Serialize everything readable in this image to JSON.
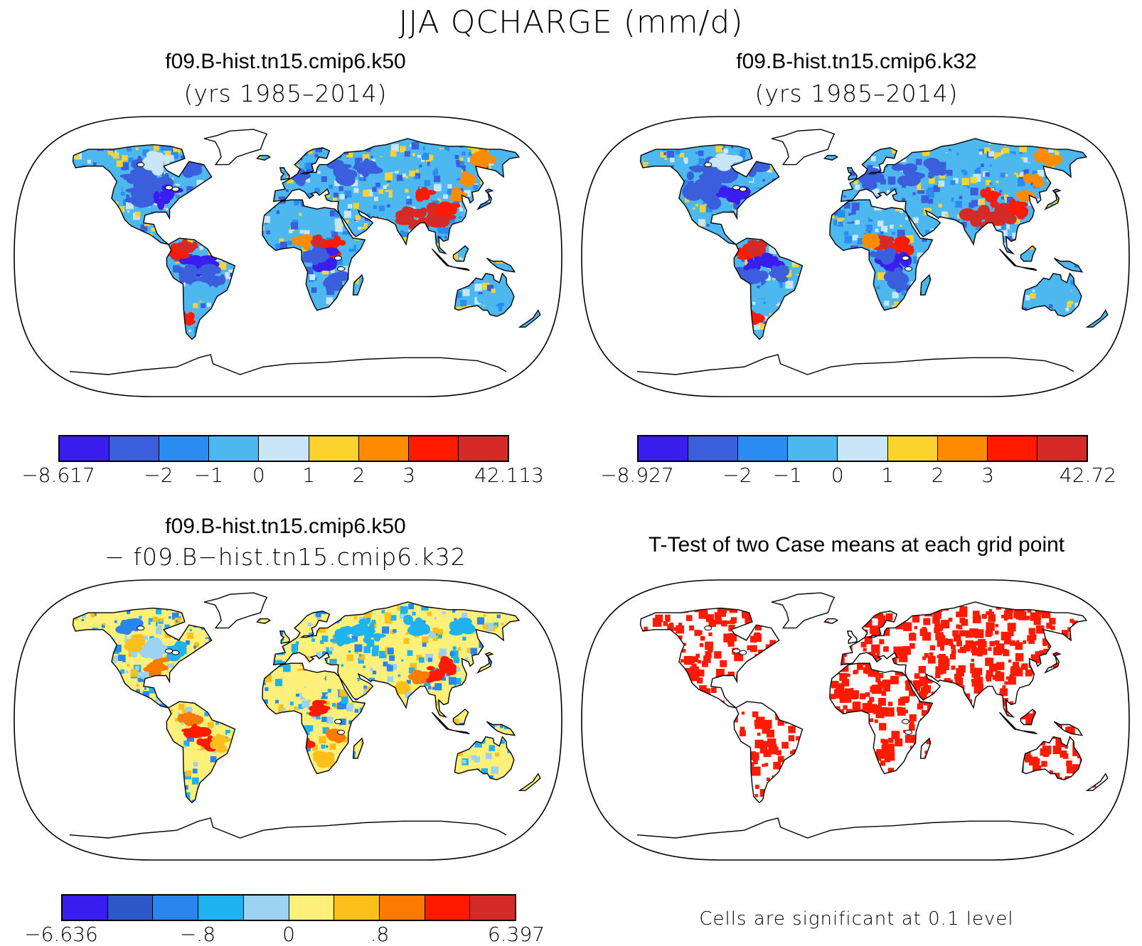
{
  "title": "JJA QCHARGE (mm/d)",
  "panels": [
    {
      "title": "f09.B-hist.tn15.cmip6.k50",
      "subtitle": "(yrs 1985–2014)",
      "colorbar": {
        "colors": [
          "#3a1ef0",
          "#3b5fdc",
          "#2a8cf0",
          "#4db8f0",
          "#c8e6f7",
          "#fcd22c",
          "#ff8c00",
          "#ff1a00",
          "#d42a28"
        ],
        "ticks": [
          "−8.617",
          "−2",
          "−1",
          "0",
          "1",
          "2",
          "3",
          "42.113"
        ]
      }
    },
    {
      "title": "f09.B-hist.tn15.cmip6.k32",
      "subtitle": "(yrs 1985–2014)",
      "colorbar": {
        "colors": [
          "#3a1ef0",
          "#3b5fdc",
          "#2a8cf0",
          "#4db8f0",
          "#c8e6f7",
          "#fcd22c",
          "#ff8c00",
          "#ff1a00",
          "#d42a28"
        ],
        "ticks": [
          "−8.927",
          "−2",
          "−1",
          "0",
          "1",
          "2",
          "3",
          "42.72"
        ]
      }
    },
    {
      "title": "f09.B-hist.tn15.cmip6.k50",
      "subtitle": "− f09.B−hist.tn15.cmip6.k32",
      "colorbar": {
        "colors": [
          "#3a1ef0",
          "#2e57c8",
          "#2a86ee",
          "#1fb2ee",
          "#9dd3f0",
          "#fff07a",
          "#fcbf1c",
          "#ff7a00",
          "#ff1a00",
          "#d42a28"
        ],
        "ticks": [
          "−6.636",
          "−.8",
          "0",
          ".8",
          "6.397"
        ]
      }
    },
    {
      "title": "T-Test of two Case means at each grid point",
      "note": "Cells are significant at 0.1 level"
    }
  ],
  "colors": {
    "land_fill_1": "#4db8f0",
    "land_fill_3": "#fff07a",
    "significant": "#ff1a00"
  }
}
